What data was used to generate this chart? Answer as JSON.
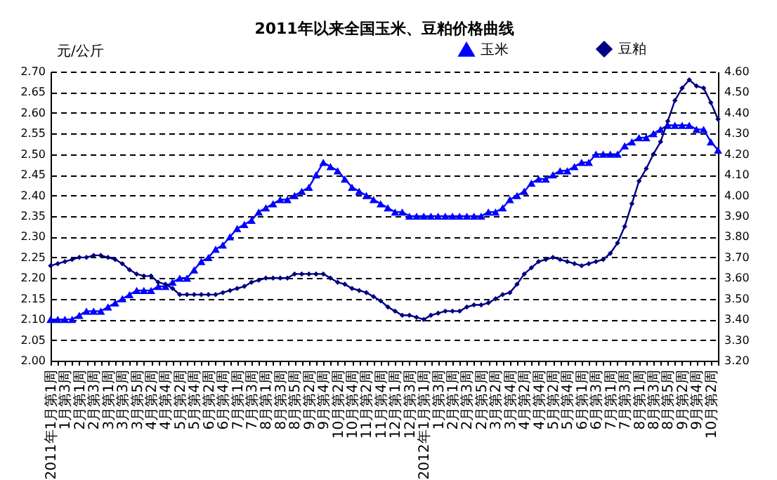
{
  "chart_data": {
    "type": "line",
    "title": "2011年以来全国玉米、豆粕价格曲线",
    "ylabel": "元/公斤",
    "categories": [
      "2011年1月第1周",
      null,
      "1月第3周",
      null,
      "2月第1周",
      null,
      "2月第3周",
      null,
      "3月第1周",
      null,
      "3月第3周",
      null,
      "3月第5周",
      null,
      "4月第2周",
      null,
      "4月第4周",
      null,
      "5月第2周",
      null,
      "5月第4周",
      null,
      "6月第2周",
      null,
      "6月第4周",
      null,
      "7月第1周",
      null,
      "7月第3周",
      null,
      "8月第1周",
      null,
      "8月第3周",
      null,
      "8月第5周",
      null,
      "9月第2周",
      null,
      "9月第4周",
      null,
      "10月第2周",
      null,
      "10月第4周",
      null,
      "11月第2周",
      null,
      "11月第4周",
      null,
      "12月第1周",
      null,
      "12月第3周",
      null,
      "2012年1月第1周",
      null,
      "1月第3周",
      null,
      "2月第1周",
      null,
      "2月第3周",
      null,
      "2月第5周",
      null,
      "3月第2周",
      null,
      "3月第4周",
      null,
      "4月第2周",
      null,
      "4月第4周",
      null,
      "5月第2周",
      null,
      "5月第4周",
      null,
      "6月第1周",
      null,
      "6月第3周",
      null,
      "7月第1周",
      null,
      "7月第3周",
      null,
      "8月第1周",
      null,
      "8月第3周",
      null,
      "8月第5周",
      null,
      "9月第2周",
      null,
      "9月第4周",
      null,
      "10月第2周",
      null
    ],
    "series": [
      {
        "name": "玉米",
        "color": "#0000ff",
        "marker": "triangle",
        "values": [
          2.1,
          2.1,
          2.1,
          2.1,
          2.11,
          2.12,
          2.12,
          2.12,
          2.13,
          2.14,
          2.15,
          2.16,
          2.17,
          2.17,
          2.17,
          2.18,
          2.18,
          2.19,
          2.2,
          2.2,
          2.22,
          2.24,
          2.25,
          2.27,
          2.28,
          2.3,
          2.32,
          2.33,
          2.34,
          2.36,
          2.37,
          2.38,
          2.39,
          2.39,
          2.4,
          2.41,
          2.42,
          2.45,
          2.48,
          2.47,
          2.46,
          2.44,
          2.42,
          2.41,
          2.4,
          2.39,
          2.38,
          2.37,
          2.36,
          2.36,
          2.35,
          2.35,
          2.35,
          2.35,
          2.35,
          2.35,
          2.35,
          2.35,
          2.35,
          2.35,
          2.35,
          2.36,
          2.36,
          2.37,
          2.39,
          2.4,
          2.41,
          2.43,
          2.44,
          2.44,
          2.45,
          2.46,
          2.46,
          2.47,
          2.48,
          2.48,
          2.5,
          2.5,
          2.5,
          2.5,
          2.52,
          2.53,
          2.54,
          2.54,
          2.55,
          2.56,
          2.57,
          2.57,
          2.57,
          2.57,
          2.56,
          2.56,
          2.53,
          2.51
        ]
      },
      {
        "name": "豆粕",
        "color": "#000080",
        "marker": "diamond",
        "axis": "y2",
        "values": [
          3.66,
          3.67,
          3.68,
          3.69,
          3.7,
          3.7,
          3.71,
          3.71,
          3.7,
          3.69,
          3.67,
          3.64,
          3.62,
          3.61,
          3.61,
          3.58,
          3.57,
          3.55,
          3.52,
          3.52,
          3.52,
          3.52,
          3.52,
          3.52,
          3.53,
          3.54,
          3.55,
          3.56,
          3.58,
          3.59,
          3.6,
          3.6,
          3.6,
          3.6,
          3.62,
          3.62,
          3.62,
          3.62,
          3.62,
          3.6,
          3.58,
          3.57,
          3.55,
          3.54,
          3.53,
          3.51,
          3.49,
          3.46,
          3.44,
          3.42,
          3.42,
          3.41,
          3.4,
          3.42,
          3.43,
          3.44,
          3.44,
          3.44,
          3.46,
          3.47,
          3.47,
          3.48,
          3.5,
          3.52,
          3.53,
          3.57,
          3.62,
          3.65,
          3.68,
          3.69,
          3.7,
          3.69,
          3.68,
          3.67,
          3.66,
          3.67,
          3.68,
          3.69,
          3.72,
          3.77,
          3.85,
          3.96,
          4.07,
          4.13,
          4.2,
          4.26,
          4.36,
          4.46,
          4.52,
          4.56,
          4.53,
          4.52,
          4.45,
          4.37
        ]
      }
    ],
    "ylim": [
      2.0,
      2.7
    ],
    "yticks": [
      {
        "value": 2,
        "label": "2.00"
      },
      2.05,
      {
        "value": 2.1,
        "label": "2.10"
      },
      2.15,
      {
        "value": 2.2,
        "label": "2.20"
      },
      2.25,
      {
        "value": 2.3,
        "label": "2.30"
      },
      2.35,
      {
        "value": 2.4,
        "label": "2.40"
      },
      2.45,
      {
        "value": 2.5,
        "label": "2.50"
      },
      2.55,
      {
        "value": 2.6,
        "label": "2.60"
      },
      2.65,
      {
        "value": 2.7,
        "label": "2.70"
      }
    ],
    "y2lim": [
      3.2,
      4.6
    ],
    "y2ticks": [
      {
        "value": 3.2,
        "label": "3.20"
      },
      {
        "value": 3.3,
        "label": "3.30"
      },
      {
        "value": 3.4,
        "label": "3.40"
      },
      {
        "value": 3.5,
        "label": "3.50"
      },
      {
        "value": 3.6,
        "label": "3.60"
      },
      {
        "value": 3.7,
        "label": "3.70"
      },
      {
        "value": 3.8,
        "label": "3.80"
      },
      {
        "value": 3.9,
        "label": "3.90"
      },
      {
        "value": 4.0,
        "label": "4.00"
      },
      {
        "value": 4.1,
        "label": "4.10"
      },
      {
        "value": 4.2,
        "label": "4.20"
      },
      {
        "value": 4.3,
        "label": "4.30"
      },
      {
        "value": 4.4,
        "label": "4.40"
      },
      {
        "value": 4.5,
        "label": "4.50"
      },
      {
        "value": 4.6,
        "label": "4.60"
      }
    ],
    "grid": "y",
    "legend": "top right"
  }
}
